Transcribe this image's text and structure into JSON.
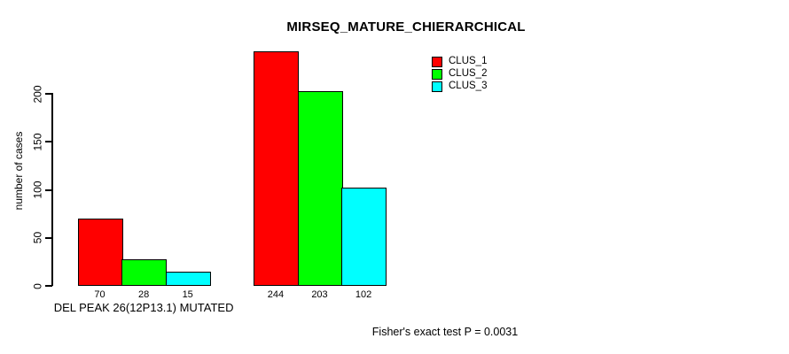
{
  "title": "MIRSEQ_MATURE_CHIERARCHICAL",
  "footnote": "Fisher's exact test P = 0.0031",
  "colors": {
    "background": "#FFFFFF",
    "axis": "#000000",
    "text": "#000000",
    "clus_1": "#FF0000",
    "clus_2": "#00FF00",
    "clus_3": "#00FFFF"
  },
  "chart_data": {
    "type": "bar",
    "title": "MIRSEQ_MATURE_CHIERARCHICAL",
    "xlabel": "",
    "ylabel": "number of cases",
    "ylim": [
      0,
      250
    ],
    "yticks": [
      0,
      50,
      100,
      150,
      200
    ],
    "grid": false,
    "legend_position": "top-right",
    "bar_value_labels": true,
    "categories": [
      "DEL PEAK 26(12P13.1) MUTATED",
      ""
    ],
    "series": [
      {
        "name": "CLUS_1",
        "color": "#FF0000",
        "values": [
          70,
          244
        ]
      },
      {
        "name": "CLUS_2",
        "color": "#00FF00",
        "values": [
          28,
          203
        ]
      },
      {
        "name": "CLUS_3",
        "color": "#00FFFF",
        "values": [
          15,
          102
        ]
      }
    ],
    "footnote": "Fisher's exact test P = 0.0031"
  }
}
